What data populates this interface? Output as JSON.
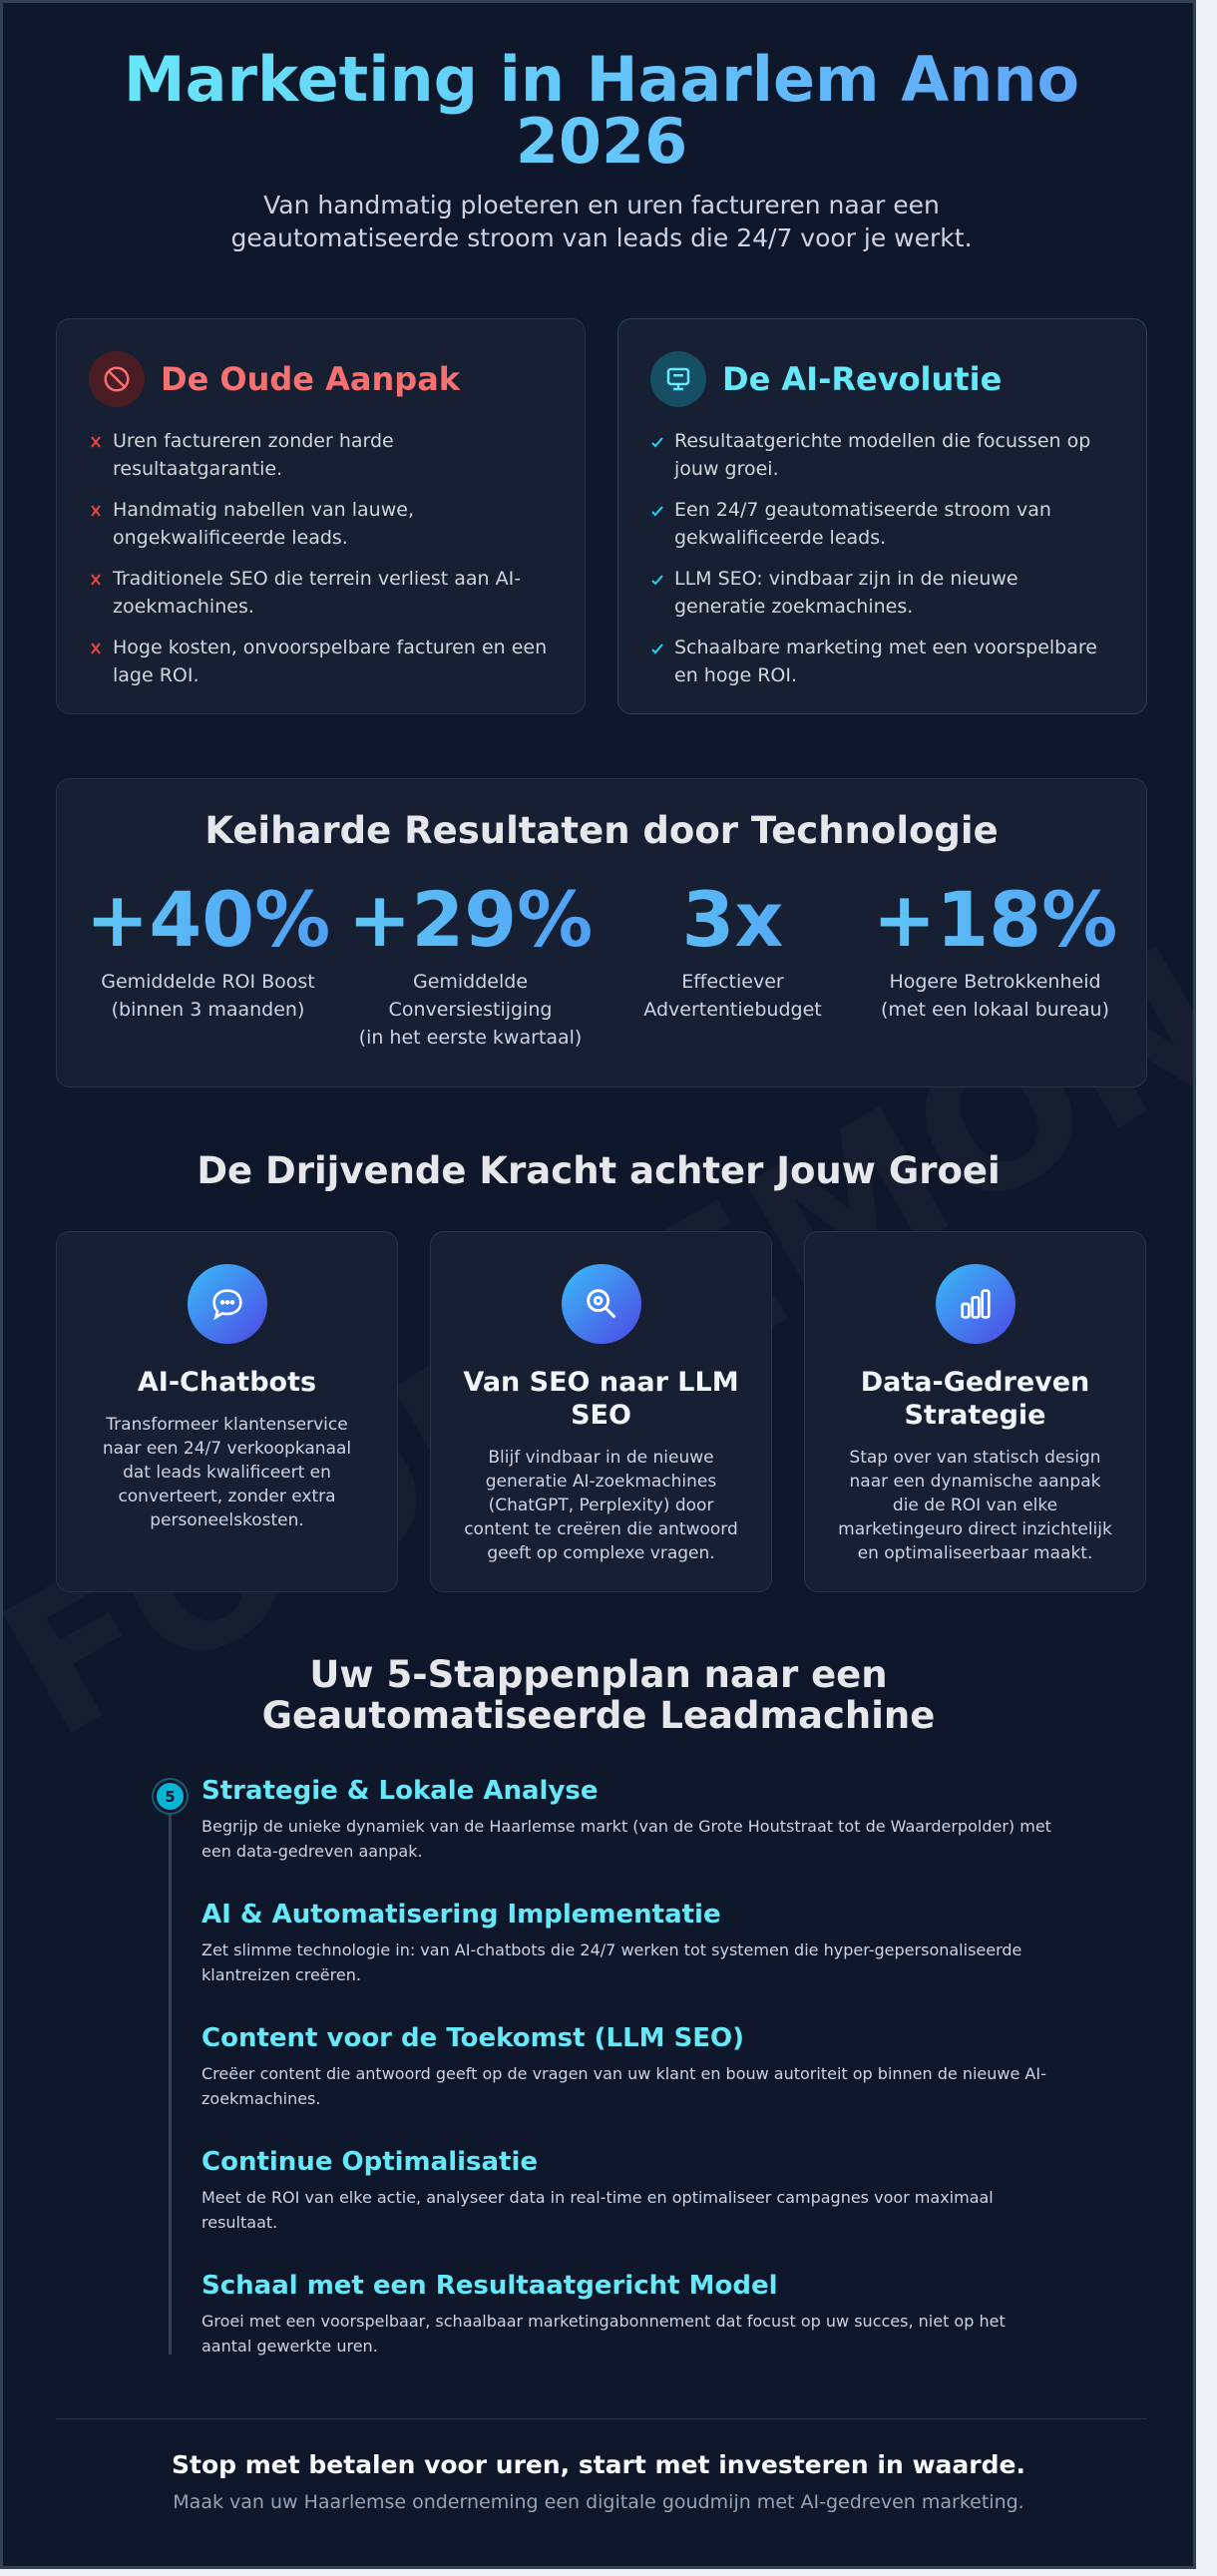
{
  "header": {
    "title": "Marketing in Haarlem Anno 2026",
    "subtitle": "Van handmatig ploeteren en uren factureren naar een geautomatiseerde stroom van leads die 24/7 voor je werkt."
  },
  "comparison": {
    "old": {
      "title": "De Oude Aanpak",
      "items": [
        "Uren factureren zonder harde resultaatgarantie.",
        "Handmatig nabellen van lauwe, ongekwalificeerde leads.",
        "Traditionele SEO die terrein verliest aan AI-zoekmachines.",
        "Hoge kosten, onvoorspelbare facturen en een lage ROI."
      ]
    },
    "new": {
      "title": "De AI-Revolutie",
      "items": [
        "Resultaatgerichte modellen die focussen op jouw groei.",
        "Een 24/7 geautomatiseerde stroom van gekwalificeerde leads.",
        "LLM SEO: vindbaar zijn in de nieuwe generatie zoekmachines.",
        "Schaalbare marketing met een voorspelbare en hoge ROI."
      ]
    }
  },
  "results": {
    "title": "Keiharde Resultaten door Technologie",
    "stats": [
      {
        "value": "+40%",
        "label": "Gemiddelde ROI Boost\n(binnen 3 maanden)"
      },
      {
        "value": "+29%",
        "label": "Gemiddelde\nConversiestijging\n(in het eerste kwartaal)"
      },
      {
        "value": "3x",
        "label": "Effectiever\nAdvertentiebudget"
      },
      {
        "value": "+18%",
        "label": "Hogere Betrokkenheid\n(met een lokaal bureau)"
      }
    ]
  },
  "features": {
    "title": "De Drijvende Kracht achter Jouw Groei",
    "cards": [
      {
        "title": "AI-Chatbots",
        "text": "Transformeer klantenservice naar een 24/7 verkoopkanaal dat leads kwalificeert en converteert, zonder extra personeelskosten."
      },
      {
        "title": "Van SEO naar LLM SEO",
        "text": "Blijf vindbaar in de nieuwe generatie AI-zoekmachines (ChatGPT, Perplexity) door content te creëren die antwoord geeft op complexe vragen."
      },
      {
        "title": "Data-Gedreven Strategie",
        "text": "Stap over van statisch design naar een dynamische aanpak die de ROI van elke marketingeuro direct inzichtelijk en optimaliseerbaar maakt."
      }
    ]
  },
  "steps": {
    "title": "Uw 5-Stappenplan naar een Geautomatiseerde Leadmachine",
    "marker": "5",
    "items": [
      {
        "title": "Strategie & Lokale Analyse",
        "text": "Begrijp de unieke dynamiek van de Haarlemse markt (van de Grote Houtstraat tot de Waarderpolder) met een data-gedreven aanpak."
      },
      {
        "title": "AI & Automatisering Implementatie",
        "text": "Zet slimme technologie in: van AI-chatbots die 24/7 werken tot systemen die hyper-gepersonaliseerde klantreizen creëren."
      },
      {
        "title": "Content voor de Toekomst (LLM SEO)",
        "text": "Creëer content die antwoord geeft op de vragen van uw klant en bouw autoriteit op binnen de nieuwe AI-zoekmachines."
      },
      {
        "title": "Continue Optimalisatie",
        "text": "Meet de ROI van elke actie, analyseer data in real-time en optimaliseer campagnes voor maximaal resultaat."
      },
      {
        "title": "Schaal met een Resultaatgericht Model",
        "text": "Groei met een voorspelbaar, schaalbaar marketingabonnement dat focust op uw succes, niet op het aantal gewerkte uren."
      }
    ]
  },
  "footer": {
    "headline": "Stop met betalen voor uren, start met investeren in waarde.",
    "subline": "Maak van uw Haarlemse onderneming een digitale goudmijn met AI-gedreven marketing."
  },
  "watermark": "FOODLEMON.NL"
}
